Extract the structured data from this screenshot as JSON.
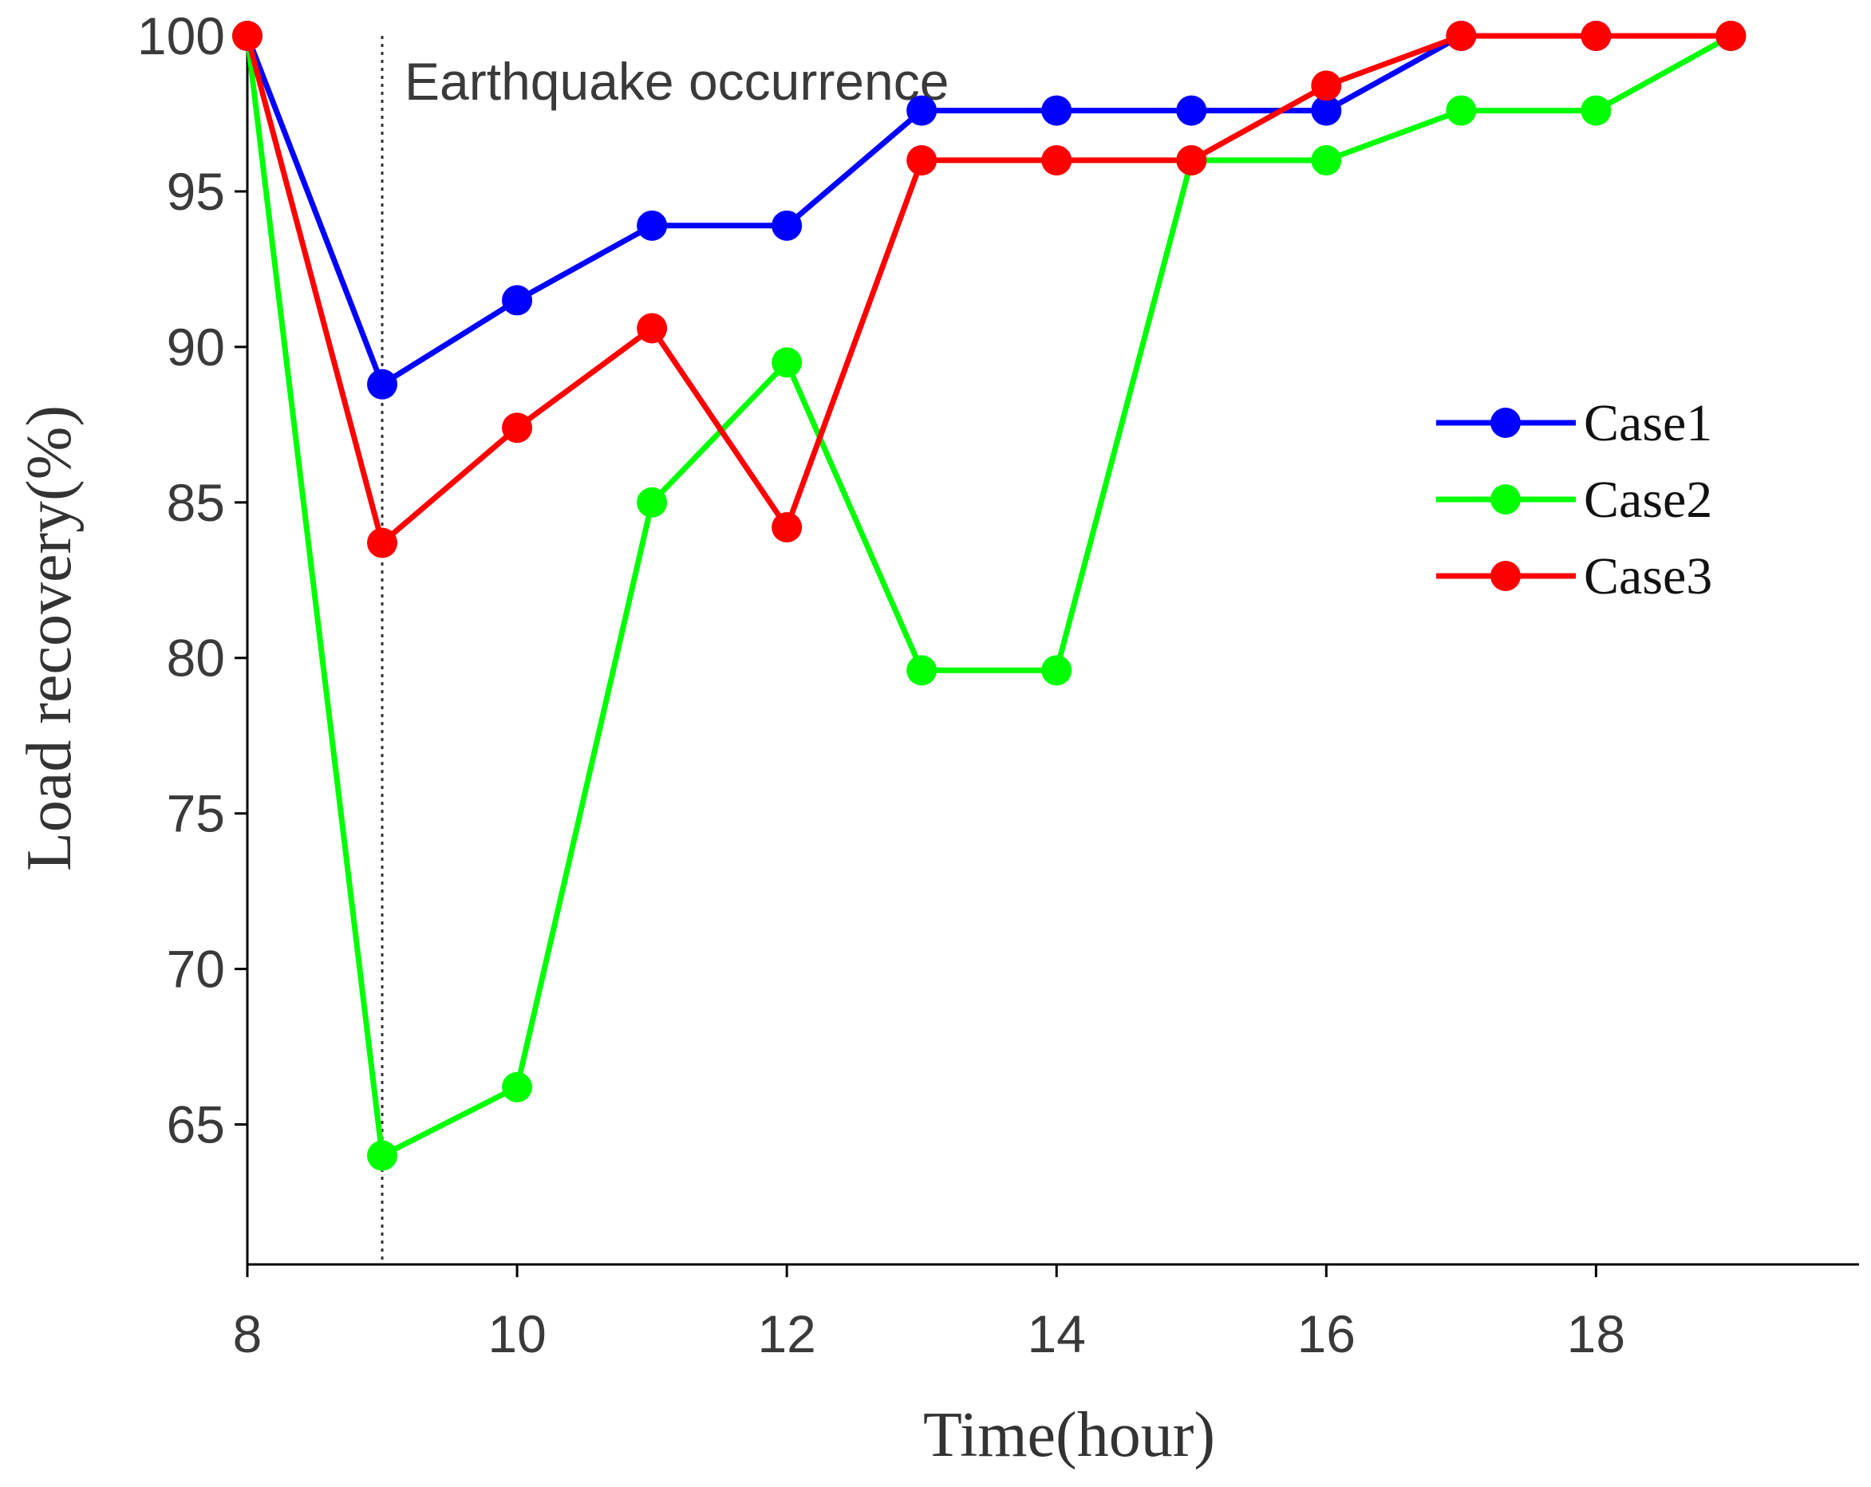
{
  "chart_data": {
    "type": "line",
    "title": "",
    "xlabel": "Time(hour)",
    "ylabel": "Load recovery(%)",
    "xlim": [
      8,
      19.95
    ],
    "ylim": [
      60.5,
      100
    ],
    "xticks": [
      8,
      10,
      12,
      14,
      16,
      18
    ],
    "yticks": [
      65,
      70,
      75,
      80,
      85,
      90,
      95,
      100
    ],
    "x": [
      8,
      9,
      10,
      11,
      12,
      13,
      14,
      15,
      16,
      17,
      18,
      19
    ],
    "series": [
      {
        "name": "Case1",
        "color": "#0000ff",
        "values": [
          100,
          88.8,
          91.5,
          93.9,
          93.9,
          97.6,
          97.6,
          97.6,
          97.6,
          100,
          100,
          100
        ]
      },
      {
        "name": "Case2",
        "color": "#00ff00",
        "values": [
          100,
          64.0,
          66.2,
          85.0,
          89.5,
          79.6,
          79.6,
          96.0,
          96.0,
          97.6,
          97.6,
          100
        ]
      },
      {
        "name": "Case3",
        "color": "#ff0000",
        "values": [
          100,
          83.7,
          87.4,
          90.6,
          84.2,
          96.0,
          96.0,
          96.0,
          98.4,
          100,
          100,
          100
        ]
      }
    ],
    "annotations": [
      {
        "text": "Earthquake occurrence",
        "x": 9,
        "style": "dotted vertical line"
      }
    ],
    "legend_position": "right",
    "grid": false
  }
}
